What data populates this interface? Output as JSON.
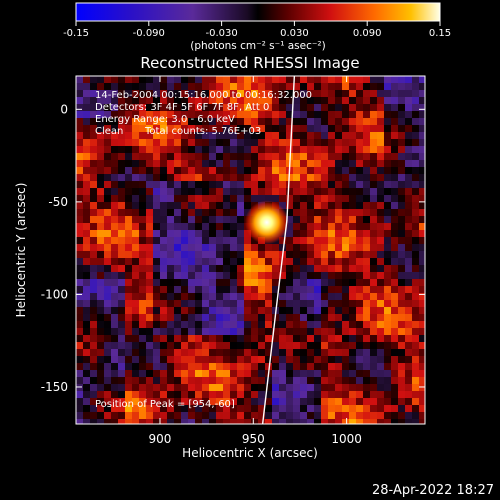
{
  "chart_data": {
    "type": "heatmap",
    "title": "Reconstructed RHESSI Image",
    "xlabel": "Heliocentric X (arcsec)",
    "ylabel": "Heliocentric Y (arcsec)",
    "xlim": [
      855,
      1042
    ],
    "ylim": [
      -170,
      18
    ],
    "x_ticks": [
      900,
      950,
      1000
    ],
    "y_ticks": [
      0,
      -50,
      -100,
      -150
    ],
    "colorbar": {
      "ticks": [
        "-0.15",
        "-0.090",
        "-0.030",
        "0.030",
        "0.090",
        "0.15"
      ],
      "range": [
        -0.15,
        0.15
      ],
      "unit": "(photons cm⁻² s⁻¹ asec⁻²)"
    },
    "annotations": [
      "14-Feb-2004 00:15:16.000 to 00:16:32.000",
      "Detectors: 3F 4F 5F 6F 7F 8F, Att 0",
      "Energy Range: 3.0 - 6.0 keV",
      "Clean",
      "Total counts: 5.76E+03"
    ],
    "peak_label": "Position of Peak = [954,-60]",
    "peak": {
      "x": 954,
      "y": -60,
      "value": 0.15
    },
    "limb": [
      [
        972,
        18
      ],
      [
        968,
        -60
      ],
      [
        962,
        -110
      ],
      [
        955,
        -170
      ]
    ]
  },
  "footer": {
    "timestamp": "28-Apr-2022 18:27"
  }
}
